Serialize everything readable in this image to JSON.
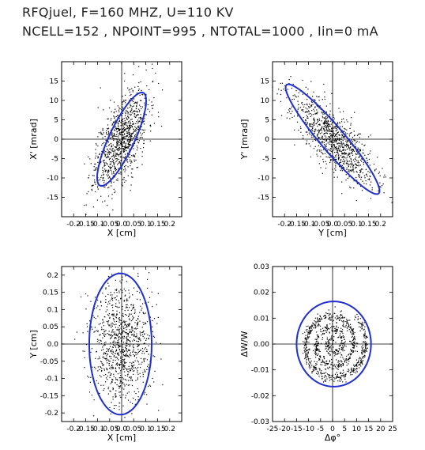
{
  "header": {
    "line1": "RFQjuel, F=160 MHZ, U=110 KV",
    "line2": "NCELL=152 , NPOINT=995 , NTOTAL=1000 , Iin=0 mA"
  },
  "colors": {
    "envelope": "#1f2fd0",
    "points": "#000000",
    "axes": "#000000"
  },
  "chart_data": [
    {
      "type": "scatter",
      "xlabel": "X [cm]",
      "ylabel": "X' [mrad]",
      "xlim": [
        -0.25,
        0.25
      ],
      "ylim": [
        -20,
        20
      ],
      "xticks": [
        "-0.2",
        "-0.15",
        "-0.1",
        "-0.05",
        "0.0",
        "0.05",
        "0.1",
        "0.15",
        "0.2"
      ],
      "xtick_values": [
        -0.2,
        -0.15,
        -0.1,
        -0.05,
        0.0,
        0.05,
        0.1,
        0.15,
        0.2
      ],
      "yticks": [
        "-15",
        "-10",
        "-5",
        "0",
        "5",
        "10",
        "15"
      ],
      "ytick_values": [
        -15,
        -10,
        -5,
        0,
        5,
        10,
        15
      ],
      "envelope": {
        "shape": "ellipse",
        "cx": 0.0,
        "cy": 0.0,
        "a": 0.175,
        "b": 0.05,
        "angle_deg": 58
      },
      "cloud": {
        "n": 995,
        "sx": 0.055,
        "sy": 6.5,
        "rho": 0.6,
        "seed": 11
      }
    },
    {
      "type": "scatter",
      "xlabel": "Y [cm]",
      "ylabel": "Y' [mrad]",
      "xlim": [
        -0.25,
        0.25
      ],
      "ylim": [
        -20,
        20
      ],
      "xticks": [
        "-0.2",
        "-0.15",
        "-0.1",
        "-0.05",
        "0.0",
        "0.05",
        "0.1",
        "0.15",
        "0.2"
      ],
      "xtick_values": [
        -0.2,
        -0.15,
        -0.1,
        -0.05,
        0.0,
        0.05,
        0.1,
        0.15,
        0.2
      ],
      "yticks": [
        "-15",
        "-10",
        "-5",
        "0",
        "5",
        "10",
        "15"
      ],
      "ytick_values": [
        -15,
        -10,
        -5,
        0,
        5,
        10,
        15
      ],
      "envelope": {
        "shape": "ellipse",
        "cx": 0.0,
        "cy": 0.0,
        "a": 0.26,
        "b": 0.045,
        "angle_deg": -42
      },
      "cloud": {
        "n": 995,
        "sx": 0.085,
        "sy": 6.0,
        "rho": -0.78,
        "seed": 23
      }
    },
    {
      "type": "scatter",
      "xlabel": "X [cm]",
      "ylabel": "Y [cm]",
      "xlim": [
        -0.25,
        0.25
      ],
      "ylim": [
        -0.225,
        0.225
      ],
      "xticks": [
        "-0.2",
        "-0.15",
        "-0.1",
        "-0.05",
        "0.0",
        "0.05",
        "0.1",
        "0.15",
        "0.2"
      ],
      "xtick_values": [
        -0.2,
        -0.15,
        -0.1,
        -0.05,
        0.0,
        0.05,
        0.1,
        0.15,
        0.2
      ],
      "yticks": [
        "-0.2",
        "-0.15",
        "-0.1",
        "-0.05",
        "0.0",
        "0.05",
        "0.1",
        "0.15",
        "0.2"
      ],
      "ytick_values": [
        -0.2,
        -0.15,
        -0.1,
        -0.05,
        0.0,
        0.05,
        0.1,
        0.15,
        0.2
      ],
      "envelope": {
        "shape": "ellipse",
        "cx": -0.005,
        "cy": 0.0,
        "a": 0.13,
        "b": 0.205,
        "angle_deg": 0
      },
      "cloud": {
        "n": 995,
        "sx": 0.06,
        "sy": 0.085,
        "rho": 0.0,
        "seed": 37
      }
    },
    {
      "type": "scatter",
      "xlabel": "Δφ°",
      "ylabel": "ΔW/W",
      "xlim": [
        -25,
        25
      ],
      "ylim": [
        -0.03,
        0.03
      ],
      "xticks": [
        "-25",
        "-20",
        "-15",
        "-10",
        "-5",
        "0",
        "5",
        "10",
        "15",
        "20",
        "25"
      ],
      "xtick_values": [
        -25,
        -20,
        -15,
        -10,
        -5,
        0,
        5,
        10,
        15,
        20,
        25
      ],
      "yticks": [
        "-0.03",
        "-0.02",
        "-0.01",
        "0.00",
        "0.01",
        "0.02",
        "0.03"
      ],
      "ytick_values": [
        -0.03,
        -0.02,
        -0.01,
        0.0,
        0.01,
        0.02,
        0.03
      ],
      "envelope": {
        "shape": "ellipse",
        "cx": 0.5,
        "cy": 0.0,
        "a": 15.5,
        "b": 0.0165,
        "angle_deg": 0
      },
      "cloud": {
        "n": 995,
        "spiral": true,
        "r_max": 14,
        "w_scale": 0.00105,
        "seed": 51
      }
    }
  ]
}
